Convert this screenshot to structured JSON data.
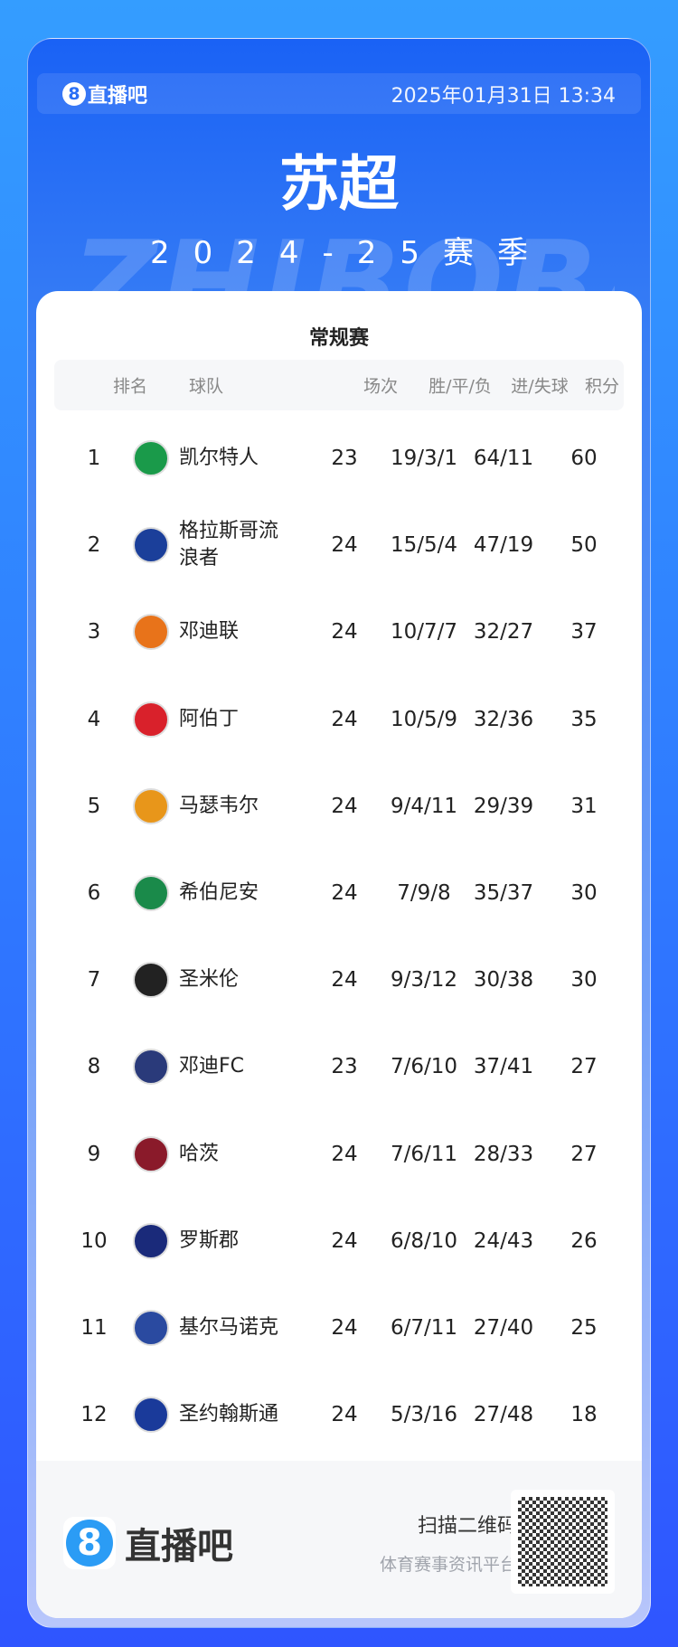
{
  "header": {
    "brand": "直播吧",
    "brand_mark": "8",
    "datetime": "2025年01月31日 13:34",
    "title": "苏超",
    "season": "2024-25赛季",
    "watermark": "ZHIBOBA"
  },
  "table": {
    "subtitle": "常规赛",
    "columns": [
      "排名",
      "球队",
      "场次",
      "胜/平/负",
      "进/失球",
      "积分"
    ],
    "rows": [
      {
        "rank": "1",
        "team": "凯尔特人",
        "played": "23",
        "wdl": "19/3/1",
        "goals": "64/11",
        "points": "60",
        "color": "#1a9a4a"
      },
      {
        "rank": "2",
        "team": "格拉斯哥流浪者",
        "played": "24",
        "wdl": "15/5/4",
        "goals": "47/19",
        "points": "50",
        "color": "#1b3f9a"
      },
      {
        "rank": "3",
        "team": "邓迪联",
        "played": "24",
        "wdl": "10/7/7",
        "goals": "32/27",
        "points": "37",
        "color": "#e8731a"
      },
      {
        "rank": "4",
        "team": "阿伯丁",
        "played": "24",
        "wdl": "10/5/9",
        "goals": "32/36",
        "points": "35",
        "color": "#d9212b"
      },
      {
        "rank": "5",
        "team": "马瑟韦尔",
        "played": "24",
        "wdl": "9/4/11",
        "goals": "29/39",
        "points": "31",
        "color": "#e8961a"
      },
      {
        "rank": "6",
        "team": "希伯尼安",
        "played": "24",
        "wdl": "7/9/8",
        "goals": "35/37",
        "points": "30",
        "color": "#1a8a4a"
      },
      {
        "rank": "7",
        "team": "圣米伦",
        "played": "24",
        "wdl": "9/3/12",
        "goals": "30/38",
        "points": "30",
        "color": "#222222"
      },
      {
        "rank": "8",
        "team": "邓迪FC",
        "played": "23",
        "wdl": "7/6/10",
        "goals": "37/41",
        "points": "27",
        "color": "#2a3a7a"
      },
      {
        "rank": "9",
        "team": "哈茨",
        "played": "24",
        "wdl": "7/6/11",
        "goals": "28/33",
        "points": "27",
        "color": "#8a1a2a"
      },
      {
        "rank": "10",
        "team": "罗斯郡",
        "played": "24",
        "wdl": "6/8/10",
        "goals": "24/43",
        "points": "26",
        "color": "#1a2a7a"
      },
      {
        "rank": "11",
        "team": "基尔马诺克",
        "played": "24",
        "wdl": "6/7/11",
        "goals": "27/40",
        "points": "25",
        "color": "#2a4aa0"
      },
      {
        "rank": "12",
        "team": "圣约翰斯通",
        "played": "24",
        "wdl": "5/3/16",
        "goals": "27/48",
        "points": "18",
        "color": "#1a3a9a"
      }
    ]
  },
  "footer": {
    "brand": "直播吧",
    "brand_mark": "8",
    "scan": "扫描二维码",
    "tagline": "体育赛事资讯平台"
  }
}
